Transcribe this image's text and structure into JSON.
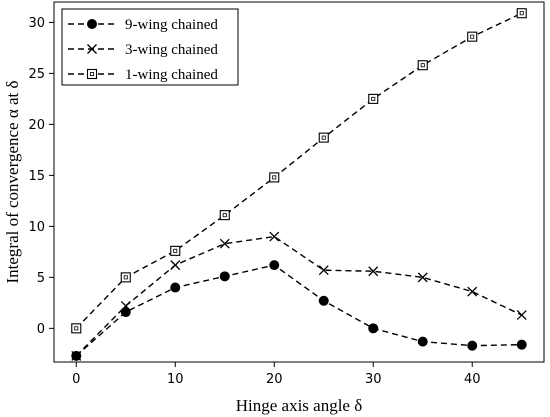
{
  "chart_data": {
    "type": "line",
    "xlabel": "Hinge axis angle δ",
    "ylabel": "Integral of convergence α at δ",
    "x": [
      0,
      5,
      10,
      15,
      20,
      25,
      30,
      35,
      40,
      45
    ],
    "xlim": [
      -2.25,
      47.25
    ],
    "ylim": [
      -3.3,
      32.0
    ],
    "xticks": [
      0,
      10,
      20,
      30,
      40
    ],
    "yticks": [
      0,
      5,
      10,
      15,
      20,
      25,
      30
    ],
    "grid": false,
    "legend_position": "top-left",
    "line_style": "dashed",
    "series": [
      {
        "name": "9-wing chained",
        "marker": "filled-circle",
        "values": [
          -2.7,
          1.6,
          4.0,
          5.1,
          6.2,
          2.7,
          0.0,
          -1.3,
          -1.7,
          -1.6
        ]
      },
      {
        "name": "3-wing chained",
        "marker": "x",
        "values": [
          -2.7,
          2.2,
          6.2,
          8.3,
          9.0,
          5.7,
          5.6,
          5.0,
          3.6,
          1.3
        ]
      },
      {
        "name": "1-wing chained",
        "marker": "open-square",
        "values": [
          0.0,
          5.0,
          7.6,
          11.1,
          14.8,
          18.7,
          22.5,
          25.8,
          28.6,
          30.9
        ]
      }
    ]
  }
}
